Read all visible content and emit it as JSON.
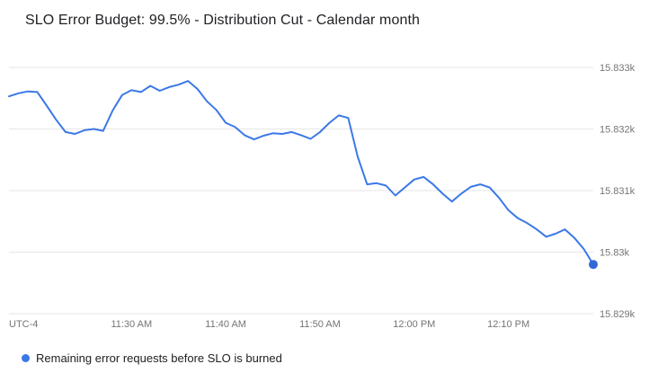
{
  "chart_data": {
    "type": "line",
    "title": "SLO Error Budget: 99.5% - Distribution Cut - Calendar month",
    "x_axis": {
      "timezone_label": "UTC-4",
      "ticks": [
        {
          "label": "11:30 AM",
          "minute_offset": 13
        },
        {
          "label": "11:40 AM",
          "minute_offset": 23
        },
        {
          "label": "11:50 AM",
          "minute_offset": 33
        },
        {
          "label": "12:00 PM",
          "minute_offset": 43
        },
        {
          "label": "12:10 PM",
          "minute_offset": 53
        }
      ],
      "start_time": "11:17 AM",
      "end_time": "12:19 PM",
      "total_minutes": 62
    },
    "y_axis": {
      "ticks": [
        "15.833k",
        "15.832k",
        "15.831k",
        "15.83k",
        "15.829k"
      ],
      "min": 15829,
      "max": 15833
    },
    "grid": "horizontal",
    "legend_position": "bottom-left",
    "series": [
      {
        "name": "Remaining error requests before SLO is burned",
        "color": "#3b78e7",
        "end_point_color": "#3367d6",
        "end_point_marker": true,
        "values": [
          15832.53,
          15832.58,
          15832.61,
          15832.6,
          15832.38,
          15832.15,
          15831.95,
          15831.92,
          15831.98,
          15832.0,
          15831.97,
          15832.3,
          15832.55,
          15832.63,
          15832.6,
          15832.7,
          15832.62,
          15832.68,
          15832.72,
          15832.78,
          15832.65,
          15832.45,
          15832.31,
          15832.1,
          15832.03,
          15831.9,
          15831.83,
          15831.89,
          15831.93,
          15831.92,
          15831.95,
          15831.9,
          15831.84,
          15831.95,
          15832.1,
          15832.22,
          15832.18,
          15831.55,
          15831.1,
          15831.12,
          15831.08,
          15830.92,
          15831.05,
          15831.18,
          15831.22,
          15831.1,
          15830.95,
          15830.82,
          15830.95,
          15831.06,
          15831.1,
          15831.05,
          15830.88,
          15830.68,
          15830.55,
          15830.47,
          15830.37,
          15830.25,
          15830.3,
          15830.37,
          15830.23,
          15830.05,
          15829.8
        ]
      }
    ]
  },
  "colors": {
    "background": "#ffffff",
    "grid_line": "#e6e6e6",
    "axis_text": "#757575",
    "title_text": "#202124",
    "legend_text": "#202124"
  }
}
